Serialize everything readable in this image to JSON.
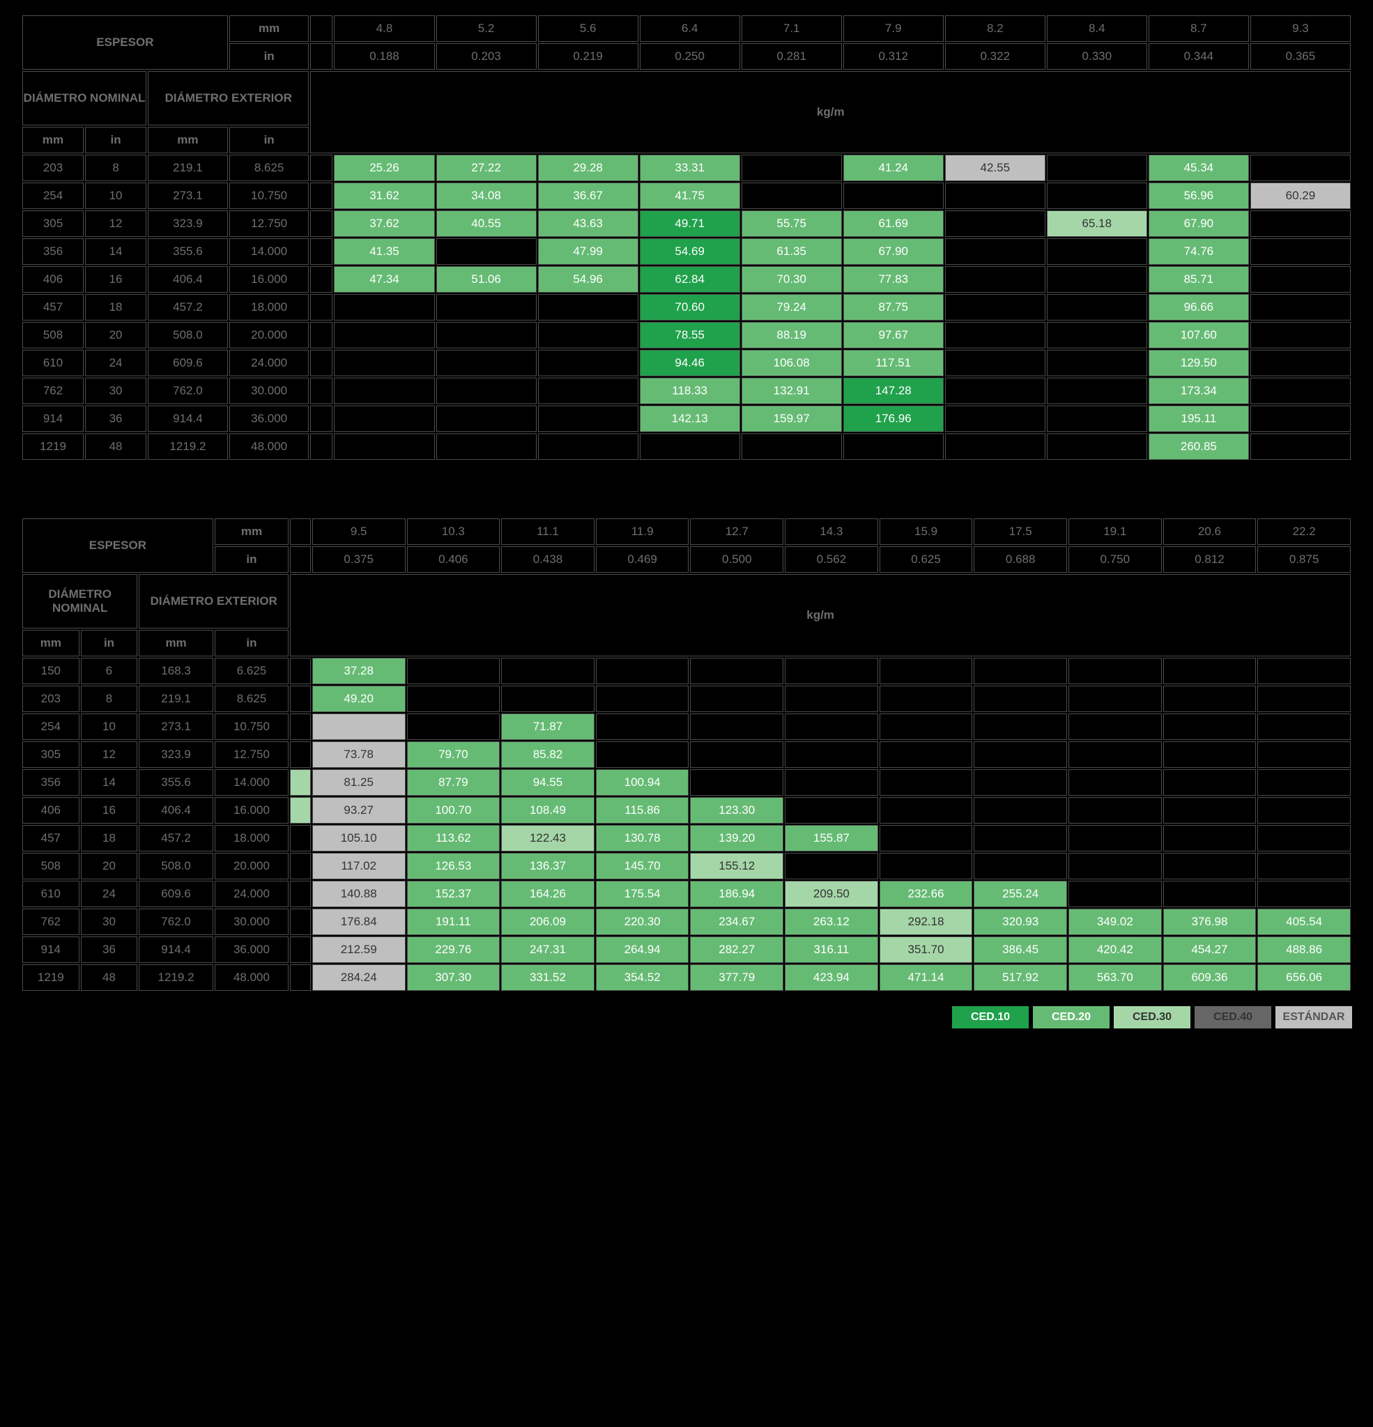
{
  "labels": {
    "espesor": "ESPESOR",
    "diam_nom": "DIÁMETRO NOMINAL",
    "diam_ext": "DIÁMETRO EXTERIOR",
    "mm": "mm",
    "in": "in",
    "kgm": "kg/m"
  },
  "legend": {
    "c10": "CED.10",
    "c20": "CED.20",
    "c30": "CED.30",
    "c40": "CED.40",
    "est": "ESTÁNDAR"
  },
  "table1": {
    "mm": [
      "4.8",
      "5.2",
      "5.6",
      "6.4",
      "7.1",
      "7.9",
      "8.2",
      "8.4",
      "8.7",
      "9.3"
    ],
    "in": [
      "0.188",
      "0.203",
      "0.219",
      "0.250",
      "0.281",
      "0.312",
      "0.322",
      "0.330",
      "0.344",
      "0.365"
    ],
    "rows": [
      {
        "nm_mm": "203",
        "nm_in": "8",
        "ex_mm": "219.1",
        "ex_in": "8.625",
        "cells": [
          {
            "v": "25.26",
            "c": "c20"
          },
          {
            "v": "27.22",
            "c": "c20"
          },
          {
            "v": "29.28",
            "c": "c20"
          },
          {
            "v": "33.31",
            "c": "c20"
          },
          {},
          {
            "v": "41.24",
            "c": "c20"
          },
          {
            "v": "42.55",
            "c": "cest"
          },
          {},
          {
            "v": "45.34",
            "c": "c20"
          },
          {}
        ]
      },
      {
        "nm_mm": "254",
        "nm_in": "10",
        "ex_mm": "273.1",
        "ex_in": "10.750",
        "cells": [
          {
            "v": "31.62",
            "c": "c20"
          },
          {
            "v": "34.08",
            "c": "c20"
          },
          {
            "v": "36.67",
            "c": "c20"
          },
          {
            "v": "41.75",
            "c": "c20"
          },
          {},
          {},
          {},
          {},
          {
            "v": "56.96",
            "c": "c20"
          },
          {
            "v": "60.29",
            "c": "cest"
          }
        ]
      },
      {
        "nm_mm": "305",
        "nm_in": "12",
        "ex_mm": "323.9",
        "ex_in": "12.750",
        "cells": [
          {
            "v": "37.62",
            "c": "c20"
          },
          {
            "v": "40.55",
            "c": "c20"
          },
          {
            "v": "43.63",
            "c": "c20"
          },
          {
            "v": "49.71",
            "c": "c10"
          },
          {
            "v": "55.75",
            "c": "c20"
          },
          {
            "v": "61.69",
            "c": "c20"
          },
          {},
          {
            "v": "65.18",
            "c": "c30"
          },
          {
            "v": "67.90",
            "c": "c20"
          },
          {}
        ]
      },
      {
        "nm_mm": "356",
        "nm_in": "14",
        "ex_mm": "355.6",
        "ex_in": "14.000",
        "cells": [
          {
            "v": "41.35",
            "c": "c20"
          },
          {},
          {
            "v": "47.99",
            "c": "c20"
          },
          {
            "v": "54.69",
            "c": "c10"
          },
          {
            "v": "61.35",
            "c": "c20"
          },
          {
            "v": "67.90",
            "c": "c20"
          },
          {},
          {},
          {
            "v": "74.76",
            "c": "c20"
          },
          {}
        ]
      },
      {
        "nm_mm": "406",
        "nm_in": "16",
        "ex_mm": "406.4",
        "ex_in": "16.000",
        "cells": [
          {
            "v": "47.34",
            "c": "c20"
          },
          {
            "v": "51.06",
            "c": "c20"
          },
          {
            "v": "54.96",
            "c": "c20"
          },
          {
            "v": "62.84",
            "c": "c10"
          },
          {
            "v": "70.30",
            "c": "c20"
          },
          {
            "v": "77.83",
            "c": "c20"
          },
          {},
          {},
          {
            "v": "85.71",
            "c": "c20"
          },
          {}
        ]
      },
      {
        "nm_mm": "457",
        "nm_in": "18",
        "ex_mm": "457.2",
        "ex_in": "18.000",
        "cells": [
          {},
          {},
          {},
          {
            "v": "70.60",
            "c": "c10"
          },
          {
            "v": "79.24",
            "c": "c20"
          },
          {
            "v": "87.75",
            "c": "c20"
          },
          {},
          {},
          {
            "v": "96.66",
            "c": "c20"
          },
          {}
        ]
      },
      {
        "nm_mm": "508",
        "nm_in": "20",
        "ex_mm": "508.0",
        "ex_in": "20.000",
        "cells": [
          {},
          {},
          {},
          {
            "v": "78.55",
            "c": "c10"
          },
          {
            "v": "88.19",
            "c": "c20"
          },
          {
            "v": "97.67",
            "c": "c20"
          },
          {},
          {},
          {
            "v": "107.60",
            "c": "c20"
          },
          {}
        ]
      },
      {
        "nm_mm": "610",
        "nm_in": "24",
        "ex_mm": "609.6",
        "ex_in": "24.000",
        "cells": [
          {},
          {},
          {},
          {
            "v": "94.46",
            "c": "c10"
          },
          {
            "v": "106.08",
            "c": "c20"
          },
          {
            "v": "117.51",
            "c": "c20"
          },
          {},
          {},
          {
            "v": "129.50",
            "c": "c20"
          },
          {}
        ]
      },
      {
        "nm_mm": "762",
        "nm_in": "30",
        "ex_mm": "762.0",
        "ex_in": "30.000",
        "cells": [
          {},
          {},
          {},
          {
            "v": "118.33",
            "c": "c20"
          },
          {
            "v": "132.91",
            "c": "c20"
          },
          {
            "v": "147.28",
            "c": "c10"
          },
          {},
          {},
          {
            "v": "173.34",
            "c": "c20"
          },
          {}
        ]
      },
      {
        "nm_mm": "914",
        "nm_in": "36",
        "ex_mm": "914.4",
        "ex_in": "36.000",
        "cells": [
          {},
          {},
          {},
          {
            "v": "142.13",
            "c": "c20"
          },
          {
            "v": "159.97",
            "c": "c20"
          },
          {
            "v": "176.96",
            "c": "c10"
          },
          {},
          {},
          {
            "v": "195.11",
            "c": "c20"
          },
          {}
        ]
      },
      {
        "nm_mm": "1219",
        "nm_in": "48",
        "ex_mm": "1219.2",
        "ex_in": "48.000",
        "cells": [
          {},
          {},
          {},
          {},
          {},
          {},
          {},
          {},
          {
            "v": "260.85",
            "c": "c20"
          },
          {}
        ]
      }
    ]
  },
  "table2": {
    "mm": [
      "9.5",
      "10.3",
      "11.1",
      "11.9",
      "12.7",
      "14.3",
      "15.9",
      "17.5",
      "19.1",
      "20.6",
      "22.2"
    ],
    "in": [
      "0.375",
      "0.406",
      "0.438",
      "0.469",
      "0.500",
      "0.562",
      "0.625",
      "0.688",
      "0.750",
      "0.812",
      "0.875"
    ],
    "rows": [
      {
        "nm_mm": "150",
        "nm_in": "6",
        "ex_mm": "168.3",
        "ex_in": "6.625",
        "lead": "",
        "cells": [
          {
            "v": "37.28",
            "c": "c20"
          },
          {},
          {},
          {},
          {},
          {},
          {},
          {},
          {},
          {},
          {}
        ]
      },
      {
        "nm_mm": "203",
        "nm_in": "8",
        "ex_mm": "219.1",
        "ex_in": "8.625",
        "lead": "",
        "cells": [
          {
            "v": "49.20",
            "c": "c20"
          },
          {},
          {},
          {},
          {},
          {},
          {},
          {},
          {},
          {},
          {}
        ]
      },
      {
        "nm_mm": "254",
        "nm_in": "10",
        "ex_mm": "273.1",
        "ex_in": "10.750",
        "lead": "",
        "cells": [
          {
            "c": "cest"
          },
          {},
          {
            "v": "71.87",
            "c": "c20"
          },
          {},
          {},
          {},
          {},
          {},
          {},
          {},
          {}
        ]
      },
      {
        "nm_mm": "305",
        "nm_in": "12",
        "ex_mm": "323.9",
        "ex_in": "12.750",
        "lead": "",
        "cells": [
          {
            "v": "73.78",
            "c": "cest"
          },
          {
            "v": "79.70",
            "c": "c20"
          },
          {
            "v": "85.82",
            "c": "c20"
          },
          {},
          {},
          {},
          {},
          {},
          {},
          {},
          {}
        ]
      },
      {
        "nm_mm": "356",
        "nm_in": "14",
        "ex_mm": "355.6",
        "ex_in": "14.000",
        "lead": "c30",
        "cells": [
          {
            "v": "81.25",
            "c": "cest"
          },
          {
            "v": "87.79",
            "c": "c20"
          },
          {
            "v": "94.55",
            "c": "c20"
          },
          {
            "v": "100.94",
            "c": "c20"
          },
          {},
          {},
          {},
          {},
          {},
          {},
          {}
        ]
      },
      {
        "nm_mm": "406",
        "nm_in": "16",
        "ex_mm": "406.4",
        "ex_in": "16.000",
        "lead": "c30",
        "cells": [
          {
            "v": "93.27",
            "c": "cest"
          },
          {
            "v": "100.70",
            "c": "c20"
          },
          {
            "v": "108.49",
            "c": "c20"
          },
          {
            "v": "115.86",
            "c": "c20"
          },
          {
            "v": "123.30",
            "c": "c20"
          },
          {},
          {},
          {},
          {},
          {},
          {}
        ]
      },
      {
        "nm_mm": "457",
        "nm_in": "18",
        "ex_mm": "457.2",
        "ex_in": "18.000",
        "lead": "",
        "cells": [
          {
            "v": "105.10",
            "c": "cest"
          },
          {
            "v": "113.62",
            "c": "c20"
          },
          {
            "v": "122.43",
            "c": "c30"
          },
          {
            "v": "130.78",
            "c": "c20"
          },
          {
            "v": "139.20",
            "c": "c20"
          },
          {
            "v": "155.87",
            "c": "c20"
          },
          {},
          {},
          {},
          {},
          {}
        ]
      },
      {
        "nm_mm": "508",
        "nm_in": "20",
        "ex_mm": "508.0",
        "ex_in": "20.000",
        "lead": "",
        "cells": [
          {
            "v": "117.02",
            "c": "cest"
          },
          {
            "v": "126.53",
            "c": "c20"
          },
          {
            "v": "136.37",
            "c": "c20"
          },
          {
            "v": "145.70",
            "c": "c20"
          },
          {
            "v": "155.12",
            "c": "c30"
          },
          {},
          {},
          {},
          {},
          {},
          {}
        ]
      },
      {
        "nm_mm": "610",
        "nm_in": "24",
        "ex_mm": "609.6",
        "ex_in": "24.000",
        "lead": "",
        "cells": [
          {
            "v": "140.88",
            "c": "cest"
          },
          {
            "v": "152.37",
            "c": "c20"
          },
          {
            "v": "164.26",
            "c": "c20"
          },
          {
            "v": "175.54",
            "c": "c20"
          },
          {
            "v": "186.94",
            "c": "c20"
          },
          {
            "v": "209.50",
            "c": "c30"
          },
          {
            "v": "232.66",
            "c": "c20"
          },
          {
            "v": "255.24",
            "c": "c20"
          },
          {},
          {},
          {}
        ]
      },
      {
        "nm_mm": "762",
        "nm_in": "30",
        "ex_mm": "762.0",
        "ex_in": "30.000",
        "lead": "",
        "cells": [
          {
            "v": "176.84",
            "c": "cest"
          },
          {
            "v": "191.11",
            "c": "c20"
          },
          {
            "v": "206.09",
            "c": "c20"
          },
          {
            "v": "220.30",
            "c": "c20"
          },
          {
            "v": "234.67",
            "c": "c20"
          },
          {
            "v": "263.12",
            "c": "c20"
          },
          {
            "v": "292.18",
            "c": "c30"
          },
          {
            "v": "320.93",
            "c": "c20"
          },
          {
            "v": "349.02",
            "c": "c20"
          },
          {
            "v": "376.98",
            "c": "c20"
          },
          {
            "v": "405.54",
            "c": "c20"
          }
        ]
      },
      {
        "nm_mm": "914",
        "nm_in": "36",
        "ex_mm": "914.4",
        "ex_in": "36.000",
        "lead": "",
        "cells": [
          {
            "v": "212.59",
            "c": "cest"
          },
          {
            "v": "229.76",
            "c": "c20"
          },
          {
            "v": "247.31",
            "c": "c20"
          },
          {
            "v": "264.94",
            "c": "c20"
          },
          {
            "v": "282.27",
            "c": "c20"
          },
          {
            "v": "316.11",
            "c": "c20"
          },
          {
            "v": "351.70",
            "c": "c30"
          },
          {
            "v": "386.45",
            "c": "c20"
          },
          {
            "v": "420.42",
            "c": "c20"
          },
          {
            "v": "454.27",
            "c": "c20"
          },
          {
            "v": "488.86",
            "c": "c20"
          }
        ]
      },
      {
        "nm_mm": "1219",
        "nm_in": "48",
        "ex_mm": "1219.2",
        "ex_in": "48.000",
        "lead": "",
        "cells": [
          {
            "v": "284.24",
            "c": "cest"
          },
          {
            "v": "307.30",
            "c": "c20"
          },
          {
            "v": "331.52",
            "c": "c20"
          },
          {
            "v": "354.52",
            "c": "c20"
          },
          {
            "v": "377.79",
            "c": "c20"
          },
          {
            "v": "423.94",
            "c": "c20"
          },
          {
            "v": "471.14",
            "c": "c20"
          },
          {
            "v": "517.92",
            "c": "c20"
          },
          {
            "v": "563.70",
            "c": "c20"
          },
          {
            "v": "609.36",
            "c": "c20"
          },
          {
            "v": "656.06",
            "c": "c20"
          }
        ]
      }
    ]
  }
}
